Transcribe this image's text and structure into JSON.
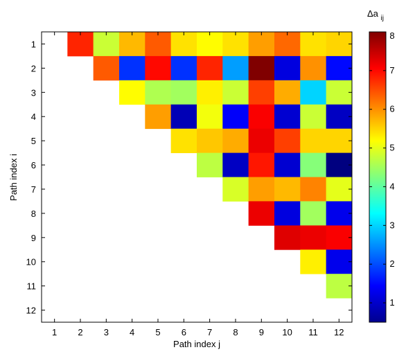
{
  "chart_data": {
    "type": "heatmap",
    "xlabel": "Path index j",
    "ylabel": "Path index i",
    "colorbar_label_main": "Δa",
    "colorbar_label_sub": "ij",
    "colormap": "jet",
    "x_ticks": [
      "1",
      "2",
      "3",
      "4",
      "5",
      "6",
      "7",
      "8",
      "9",
      "10",
      "11",
      "12"
    ],
    "y_ticks": [
      "1",
      "2",
      "3",
      "4",
      "5",
      "6",
      "7",
      "8",
      "9",
      "10",
      "11",
      "12"
    ],
    "color_range": [
      0.5,
      8
    ],
    "colorbar_ticks": [
      1,
      2,
      3,
      4,
      5,
      6,
      7,
      8
    ],
    "colorbar_tick_labels": [
      "1",
      "2",
      "3",
      "4",
      "5",
      "6",
      "7",
      "8"
    ],
    "matrix": [
      [
        null,
        6.8,
        4.8,
        5.7,
        6.4,
        5.4,
        5.2,
        5.4,
        5.9,
        6.3,
        5.4,
        5.5
      ],
      [
        null,
        null,
        6.4,
        1.8,
        7.0,
        1.8,
        6.8,
        2.6,
        8.0,
        1.2,
        6.0,
        1.5
      ],
      [
        null,
        null,
        null,
        5.2,
        4.6,
        4.5,
        5.3,
        4.8,
        6.6,
        5.8,
        3.0,
        4.8
      ],
      [
        null,
        null,
        null,
        null,
        5.9,
        0.9,
        5.1,
        1.4,
        7.1,
        1.1,
        4.8,
        1.0
      ],
      [
        null,
        null,
        null,
        null,
        null,
        5.4,
        5.6,
        5.8,
        7.2,
        6.6,
        5.5,
        5.5
      ],
      [
        null,
        null,
        null,
        null,
        null,
        null,
        4.7,
        1.0,
        6.9,
        1.1,
        4.3,
        0.5
      ],
      [
        null,
        null,
        null,
        null,
        null,
        null,
        null,
        4.9,
        5.9,
        5.7,
        6.1,
        5.0
      ],
      [
        null,
        null,
        null,
        null,
        null,
        null,
        null,
        null,
        7.2,
        1.2,
        4.5,
        1.3
      ],
      [
        null,
        null,
        null,
        null,
        null,
        null,
        null,
        null,
        null,
        7.3,
        7.2,
        7.1
      ],
      [
        null,
        null,
        null,
        null,
        null,
        null,
        null,
        null,
        null,
        null,
        5.3,
        1.3
      ],
      [
        null,
        null,
        null,
        null,
        null,
        null,
        null,
        null,
        null,
        null,
        null,
        4.7
      ],
      [
        null,
        null,
        null,
        null,
        null,
        null,
        null,
        null,
        null,
        null,
        null,
        null
      ]
    ]
  }
}
